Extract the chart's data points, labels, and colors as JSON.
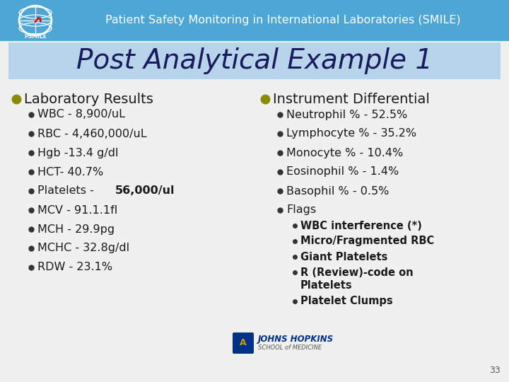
{
  "title_bar_color": "#4da6d4",
  "title_text": "Patient Safety Monitoring in International Laboratories (SMILE)",
  "title_text_color": "#ffffff",
  "slide_bg": "#f0f0f0",
  "heading": "Post Analytical Example 1",
  "heading_bg": "#b8d4ea",
  "heading_color": "#1a1a5e",
  "left_bullet_color": "#8b8b00",
  "right_bullet_color": "#8b8b00",
  "left_header": "Laboratory Results",
  "left_items_normal": [
    "WBC - 8,900/uL",
    "RBC - 4,460,000/uL",
    "Hgb -13.4 g/dl",
    "HCT- 40.7%",
    "MCV - 91.1.1fl",
    "MCH - 29.9pg",
    "MCHC - 32.8g/dl",
    "RDW - 23.1%"
  ],
  "platelets_prefix": "Platelets - ",
  "platelets_bold": "56,000/ul",
  "right_header": "Instrument Differential",
  "right_items": [
    "Neutrophil % - 52.5%",
    "Lymphocyte % - 35.2%",
    "Monocyte % - 10.4%",
    "Eosinophil % - 1.4%",
    "Basophil % - 0.5%",
    "Flags"
  ],
  "flags_items": [
    "WBC interference (*)",
    "Micro/Fragmented RBC",
    "Giant Platelets",
    "R (Review)-code on\nPlatelets",
    "Platelet Clumps"
  ],
  "page_number": "33",
  "body_text_color": "#1a1a1a",
  "header_fontsize": 14,
  "item_fontsize": 11.5,
  "flags_fontsize": 10.5,
  "title_fontsize": 11.5,
  "heading_fontsize": 28
}
